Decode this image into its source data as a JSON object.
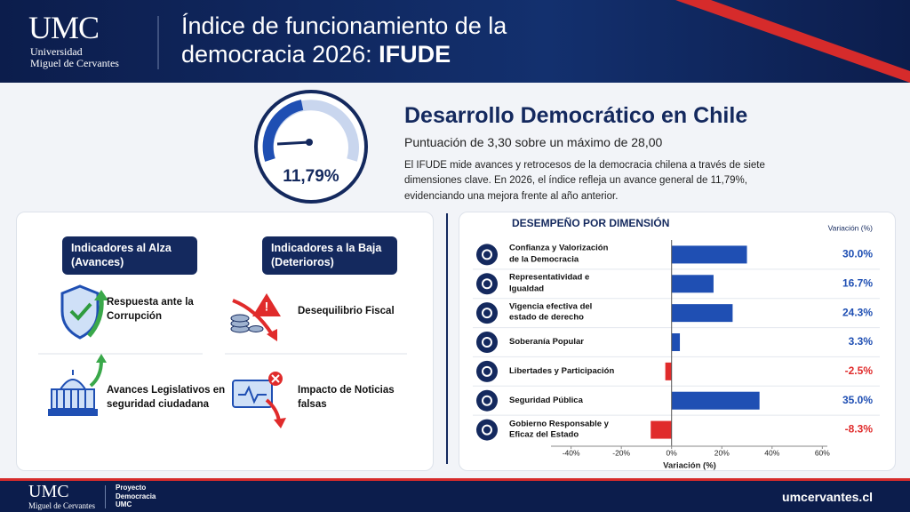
{
  "header": {
    "logo": "UMC",
    "university_line1": "Universidad",
    "university_line2": "Miguel de Cervantes",
    "title_main": "Índice de funcionamiento de la democracia 2026:",
    "title_emphasis": "IFUDE"
  },
  "summary": {
    "gauge_value": "11,79%",
    "heading": "Desarrollo Democrático en Chile",
    "subheading": "Puntuación de 3,30 sobre un máximo de 28,00",
    "body": "El IFUDE mide avances y retrocesos de la democracia chilena a través de siete dimensiones clave. En 2026, el índice refleja un avance general de 11,79%, evidenciando una mejora frente al año anterior."
  },
  "indicators": {
    "up": {
      "heading": "Indicadores al Alza (Avances)",
      "items": [
        "Respuesta ante la Corrupción",
        "Avances Legislativos en seguridad ciudadana"
      ]
    },
    "down": {
      "heading": "Indicadores a la Baja (Deterioros)",
      "items": [
        "Desequilibrio Fiscal",
        "Impacto de Noticias falsas"
      ]
    }
  },
  "chart_data": {
    "type": "bar",
    "orientation": "horizontal",
    "title": "DESEMPEÑO POR DIMENSIÓN",
    "column_header": "Variación (%)",
    "x_axis_label": "Variación (%)",
    "categories": [
      "Confianza y Valorización de la Democracia",
      "Representatividad e Igualdad",
      "Vigencia efectiva del estado de derecho",
      "Soberanía Popular",
      "Libertades y Participación",
      "Seguridad Pública",
      "Gobierno Responsable y Eficaz del Estado"
    ],
    "values": [
      30.0,
      16.7,
      24.3,
      3.3,
      -2.5,
      35.0,
      -8.3
    ],
    "value_labels": [
      "30.0%",
      "16.7%",
      "24.3%",
      "3.3%",
      "-2.5%",
      "35.0%",
      "-8.3%"
    ],
    "positive_color": "#1f4fb3",
    "negative_color": "#e02b2b",
    "xlim": [
      -48,
      62
    ],
    "xticks": [
      {
        "value": -40,
        "label": "-40%"
      },
      {
        "value": -20,
        "label": "-20%"
      },
      {
        "value": 0,
        "label": "0%"
      },
      {
        "value": 20,
        "label": "20%"
      },
      {
        "value": 40,
        "label": "40%"
      },
      {
        "value": 60,
        "label": "60%"
      }
    ]
  },
  "footer": {
    "logo": "UMC",
    "university": "Miguel de Cervantes",
    "project": "Proyecto Democracia UMC",
    "website": "umcervantes.cl"
  }
}
